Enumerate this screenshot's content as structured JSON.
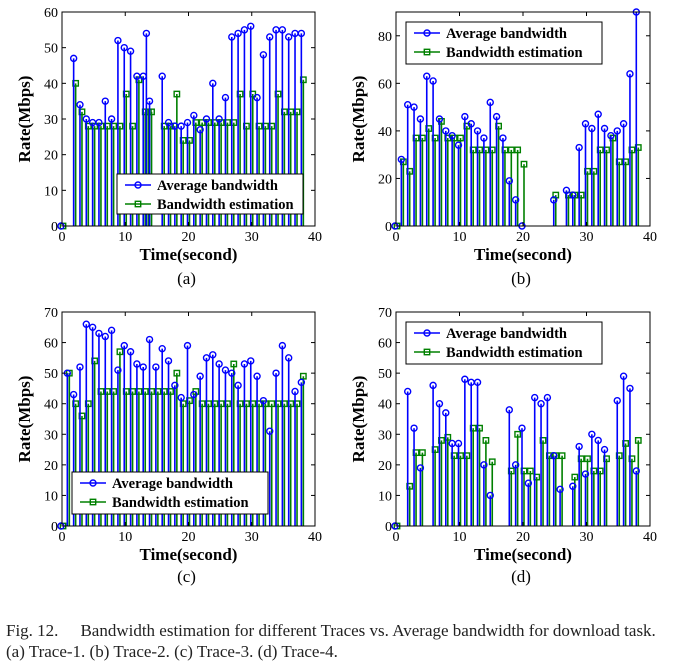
{
  "caption": {
    "label": "Fig. 12.",
    "text": "Bandwidth estimation for different Traces vs. Average bandwidth for download task. (a) Trace-1. (b) Trace-2. (c) Trace-3. (d) Trace-4."
  },
  "colors": {
    "average": "#0000ff",
    "estimation": "#008000"
  },
  "chart_data": [
    {
      "type": "stem",
      "panel_label": "(a)",
      "xlabel": "Time(second)",
      "ylabel": "Rate(Mbps)",
      "xlim": [
        0,
        40
      ],
      "ylim": [
        0,
        60
      ],
      "xticks": [
        0,
        10,
        20,
        30,
        40
      ],
      "yticks": [
        0,
        10,
        20,
        30,
        40,
        50,
        60
      ],
      "legend_position": "bottom-right",
      "series": [
        {
          "name": "Average bandwidth",
          "marker": "circle",
          "x": [
            0,
            2,
            3,
            4,
            5,
            6,
            7,
            8,
            9,
            10,
            11,
            12,
            13,
            13.5,
            14,
            16,
            17,
            18,
            19,
            20,
            21,
            22,
            23,
            24,
            25,
            26,
            27,
            28,
            29,
            30,
            31,
            32,
            33,
            34,
            35,
            36,
            37,
            38
          ],
          "y": [
            0,
            47,
            34,
            30,
            29,
            29,
            35,
            30,
            52,
            50,
            49,
            42,
            42,
            54,
            35,
            42,
            29,
            28,
            28,
            29,
            31,
            27,
            30,
            40,
            30,
            36,
            53,
            54,
            55,
            56,
            36,
            48,
            53,
            55,
            55,
            53,
            54,
            54
          ]
        },
        {
          "name": "Bandwidth estimation",
          "marker": "square",
          "x": [
            0,
            2,
            3,
            4,
            5,
            6,
            7,
            8,
            9,
            10,
            11,
            12,
            13,
            13.5,
            14,
            16,
            17,
            18,
            19,
            20,
            21,
            22,
            23,
            24,
            25,
            26,
            27,
            28,
            29,
            30,
            31,
            32,
            33,
            34,
            35,
            36,
            37,
            38
          ],
          "y": [
            0,
            40,
            32,
            28,
            28,
            28,
            28,
            28,
            28,
            37,
            28,
            41,
            32,
            32,
            32,
            28,
            28,
            37,
            24,
            24,
            29,
            29,
            29,
            29,
            29,
            29,
            29,
            37,
            28,
            37,
            28,
            28,
            28,
            37,
            32,
            32,
            32,
            41
          ]
        }
      ]
    },
    {
      "type": "stem",
      "panel_label": "(b)",
      "xlabel": "Time(second)",
      "ylabel": "Rate(Mbps)",
      "xlim": [
        0,
        40
      ],
      "ylim": [
        0,
        90
      ],
      "xticks": [
        0,
        10,
        20,
        30,
        40
      ],
      "yticks": [
        0,
        20,
        40,
        60,
        80
      ],
      "legend_position": "top-left",
      "series": [
        {
          "name": "Average bandwidth",
          "marker": "circle",
          "x": [
            0,
            1,
            2,
            3,
            4,
            5,
            6,
            7,
            8,
            9,
            10,
            11,
            12,
            13,
            14,
            15,
            16,
            17,
            18,
            19,
            20,
            25,
            27,
            28,
            29,
            30,
            31,
            32,
            33,
            34,
            35,
            36,
            37,
            38
          ],
          "y": [
            0,
            28,
            51,
            50,
            45,
            63,
            61,
            45,
            40,
            38,
            34,
            46,
            43,
            40,
            37,
            52,
            46,
            37,
            19,
            11,
            0,
            11,
            15,
            13,
            33,
            43,
            41,
            47,
            41,
            38,
            40,
            43,
            64,
            90
          ]
        },
        {
          "name": "Bandwidth estimation",
          "marker": "square",
          "x": [
            0,
            1,
            2,
            3,
            4,
            5,
            6,
            7,
            8,
            9,
            10,
            11,
            12,
            13,
            14,
            15,
            16,
            17,
            18,
            19,
            20,
            25,
            27,
            28,
            29,
            30,
            31,
            32,
            33,
            34,
            35,
            36,
            37,
            38
          ],
          "y": [
            0,
            27,
            23,
            37,
            37,
            41,
            37,
            44,
            37,
            37,
            37,
            42,
            32,
            32,
            32,
            32,
            42,
            32,
            32,
            32,
            26,
            13,
            13,
            13,
            13,
            23,
            23,
            32,
            32,
            37,
            27,
            27,
            32,
            33
          ]
        }
      ]
    },
    {
      "type": "stem",
      "panel_label": "(c)",
      "xlabel": "Time(second)",
      "ylabel": "Rate(Mbps)",
      "xlim": [
        0,
        40
      ],
      "ylim": [
        0,
        70
      ],
      "xticks": [
        0,
        10,
        20,
        30,
        40
      ],
      "yticks": [
        0,
        10,
        20,
        30,
        40,
        50,
        60,
        70
      ],
      "legend_position": "bottom-right",
      "series": [
        {
          "name": "Average bandwidth",
          "marker": "circle",
          "x": [
            0,
            1,
            2,
            3,
            4,
            5,
            6,
            7,
            8,
            9,
            10,
            11,
            12,
            13,
            14,
            15,
            16,
            17,
            18,
            19,
            20,
            21,
            22,
            23,
            24,
            25,
            26,
            27,
            28,
            29,
            30,
            31,
            32,
            33,
            34,
            35,
            36,
            37,
            38
          ],
          "y": [
            0,
            50,
            43,
            52,
            66,
            65,
            63,
            62,
            64,
            51,
            59,
            57,
            53,
            52,
            61,
            52,
            58,
            54,
            46,
            42,
            59,
            43,
            49,
            55,
            56,
            53,
            51,
            50,
            46,
            53,
            54,
            49,
            41,
            31,
            50,
            59,
            55,
            44,
            47
          ]
        },
        {
          "name": "Bandwidth estimation",
          "marker": "square",
          "x": [
            0,
            1,
            2,
            3,
            4,
            5,
            6,
            7,
            8,
            9,
            10,
            11,
            12,
            13,
            14,
            15,
            16,
            17,
            18,
            19,
            20,
            21,
            22,
            23,
            24,
            25,
            26,
            27,
            28,
            29,
            30,
            31,
            32,
            33,
            34,
            35,
            36,
            37,
            38
          ],
          "y": [
            0,
            50,
            40,
            36,
            40,
            54,
            44,
            44,
            44,
            57,
            44,
            44,
            44,
            44,
            44,
            44,
            44,
            44,
            50,
            40,
            41,
            44,
            40,
            40,
            40,
            40,
            40,
            53,
            40,
            40,
            40,
            40,
            40,
            40,
            40,
            40,
            40,
            40,
            49
          ]
        }
      ]
    },
    {
      "type": "stem",
      "panel_label": "(d)",
      "xlabel": "Time(second)",
      "ylabel": "Rate(Mbps)",
      "xlim": [
        0,
        40
      ],
      "ylim": [
        0,
        70
      ],
      "xticks": [
        0,
        10,
        20,
        30,
        40
      ],
      "yticks": [
        0,
        10,
        20,
        30,
        40,
        50,
        60,
        70
      ],
      "legend_position": "top-left",
      "series": [
        {
          "name": "Average bandwidth",
          "marker": "circle",
          "x": [
            0,
            2,
            3,
            4,
            6,
            7,
            8,
            9,
            10,
            11,
            12,
            13,
            14,
            15,
            18,
            19,
            20,
            21,
            22,
            23,
            24,
            25,
            26,
            28,
            29,
            30,
            31,
            32,
            33,
            35,
            36,
            37,
            38
          ],
          "y": [
            0,
            44,
            32,
            19,
            46,
            40,
            37,
            27,
            27,
            48,
            47,
            47,
            20,
            10,
            38,
            20,
            32,
            14,
            42,
            40,
            42,
            23,
            12,
            13,
            26,
            17,
            30,
            28,
            25,
            41,
            49,
            45,
            18
          ]
        },
        {
          "name": "Bandwidth estimation",
          "marker": "square",
          "x": [
            0,
            2,
            3,
            4,
            6,
            7,
            8,
            9,
            10,
            11,
            12,
            13,
            14,
            15,
            18,
            19,
            20,
            21,
            22,
            23,
            24,
            25,
            26,
            28,
            29,
            30,
            31,
            32,
            33,
            35,
            36,
            37,
            38
          ],
          "y": [
            0,
            13,
            24,
            24,
            25,
            28,
            29,
            23,
            23,
            23,
            32,
            32,
            28,
            21,
            18,
            30,
            18,
            18,
            16,
            28,
            23,
            23,
            23,
            16,
            22,
            22,
            18,
            18,
            22,
            23,
            27,
            22,
            28
          ]
        }
      ]
    }
  ]
}
